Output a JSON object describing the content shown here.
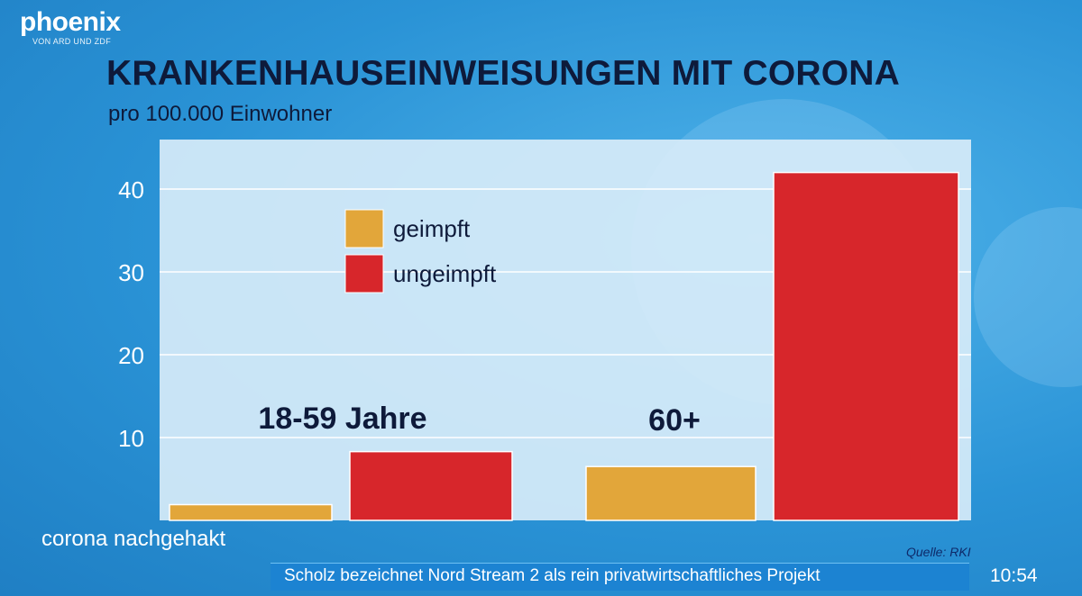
{
  "channel": {
    "name": "phoenix",
    "tagline": "VON ARD UND ZDF"
  },
  "show_name": "corona nachgehakt",
  "ticker": {
    "text": "Scholz bezeichnet Nord Stream 2 als rein privatwirtschaftliches Projekt",
    "time": "10:54"
  },
  "source": "Quelle: RKI",
  "chart_data": {
    "type": "bar",
    "title": "KRANKENHAUSEINWEISUNGEN MIT CORONA",
    "subtitle": "pro 100.000 Einwohner",
    "categories": [
      "18-59 Jahre",
      "60+"
    ],
    "series": [
      {
        "name": "geimpft",
        "color": "#e2a63a",
        "values": [
          1.9,
          6.5
        ]
      },
      {
        "name": "ungeimpft",
        "color": "#d7262b",
        "values": [
          8.3,
          42
        ]
      }
    ],
    "ylim": [
      0,
      44
    ],
    "yticks": [
      10,
      20,
      30,
      40
    ],
    "grid": true,
    "legend_position": "top-left",
    "background": "#d7ecf8",
    "gridline_color": "#ffffff"
  }
}
